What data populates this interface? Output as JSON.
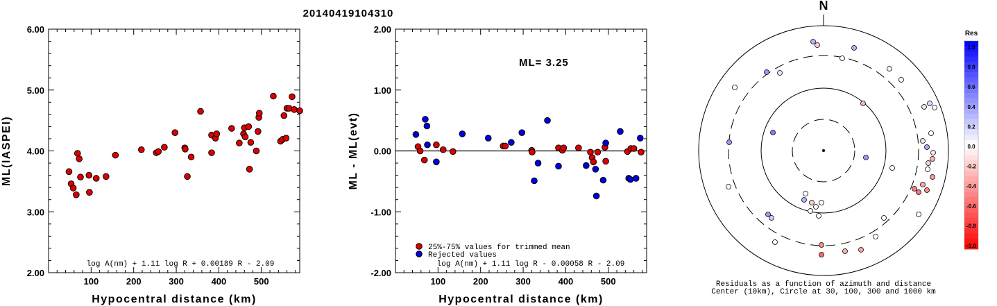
{
  "title": "20140419104310",
  "chart_data": [
    {
      "type": "scatter",
      "xlabel": "Hypocentral distance (km)",
      "ylabel": "ML(IASPEI)",
      "xlim": [
        0,
        590
      ],
      "ylim": [
        2.0,
        6.0
      ],
      "x_ticks": [
        "100",
        "200",
        "300",
        "400",
        "500"
      ],
      "y_ticks": [
        "2.00",
        "3.00",
        "4.00",
        "5.00",
        "6.00"
      ],
      "formula": "log A(nm) + 1.11 log R + 0.00189 R - 2.09",
      "series": [
        {
          "color": "#dd0000",
          "points": [
            [
              48,
              3.66
            ],
            [
              53,
              3.46
            ],
            [
              58,
              3.39
            ],
            [
              65,
              3.28
            ],
            [
              68,
              3.96
            ],
            [
              72,
              3.87
            ],
            [
              75,
              3.57
            ],
            [
              95,
              3.6
            ],
            [
              96,
              3.32
            ],
            [
              112,
              3.55
            ],
            [
              135,
              3.58
            ],
            [
              157,
              3.93
            ],
            [
              218,
              4.02
            ],
            [
              253,
              3.97
            ],
            [
              258,
              3.99
            ],
            [
              272,
              4.06
            ],
            [
              297,
              4.3
            ],
            [
              320,
              4.05
            ],
            [
              321,
              4.03
            ],
            [
              326,
              3.58
            ],
            [
              335,
              3.9
            ],
            [
              357,
              4.65
            ],
            [
              383,
              3.97
            ],
            [
              383,
              4.26
            ],
            [
              392,
              4.21
            ],
            [
              395,
              4.28
            ],
            [
              430,
              4.37
            ],
            [
              448,
              4.13
            ],
            [
              458,
              4.28
            ],
            [
              460,
              4.38
            ],
            [
              462,
              4.23
            ],
            [
              470,
              4.4
            ],
            [
              472,
              3.7
            ],
            [
              475,
              4.14
            ],
            [
              488,
              4.0
            ],
            [
              492,
              4.32
            ],
            [
              494,
              4.55
            ],
            [
              495,
              4.62
            ],
            [
              528,
              4.9
            ],
            [
              545,
              4.16
            ],
            [
              550,
              4.19
            ],
            [
              553,
              4.58
            ],
            [
              558,
              4.21
            ],
            [
              560,
              4.7
            ],
            [
              565,
              4.7
            ],
            [
              572,
              4.89
            ],
            [
              577,
              4.68
            ],
            [
              590,
              4.66
            ]
          ]
        }
      ]
    },
    {
      "type": "scatter",
      "xlabel": "Hypocentral distance (km)",
      "ylabel": "ML - ML(evt)",
      "xlim": [
        0,
        590
      ],
      "ylim": [
        -2.0,
        2.0
      ],
      "x_ticks": [
        "100",
        "200",
        "300",
        "400",
        "500"
      ],
      "y_ticks": [
        "-2.00",
        "-1.00",
        "0.00",
        "1.00",
        "2.00"
      ],
      "annotation": "ML= 3.25",
      "formula": "log A(nm) + 1.11 log R - 0.00058 R - 2.09",
      "series": [
        {
          "name": "25%-75% values for trimmed mean",
          "color": "#dd0000",
          "points": [
            [
              53,
              0.07
            ],
            [
              58,
              0.0
            ],
            [
              68,
              -0.15
            ],
            [
              96,
              0.1
            ],
            [
              112,
              0.02
            ],
            [
              135,
              -0.01
            ],
            [
              253,
              0.08
            ],
            [
              258,
              0.08
            ],
            [
              320,
              0.01
            ],
            [
              321,
              -0.02
            ],
            [
              383,
              0.05
            ],
            [
              392,
              0.01
            ],
            [
              395,
              0.05
            ],
            [
              430,
              0.05
            ],
            [
              458,
              -0.02
            ],
            [
              462,
              -0.11
            ],
            [
              465,
              -0.18
            ],
            [
              475,
              -0.02
            ],
            [
              492,
              0.06
            ],
            [
              494,
              -0.17
            ],
            [
              545,
              -0.01
            ],
            [
              553,
              0.04
            ],
            [
              560,
              0.04
            ],
            [
              577,
              -0.02
            ]
          ]
        },
        {
          "name": "Rejected values",
          "color": "#0000dd",
          "points": [
            [
              48,
              0.27
            ],
            [
              70,
              0.52
            ],
            [
              74,
              0.41
            ],
            [
              75,
              0.1
            ],
            [
              96,
              -0.18
            ],
            [
              157,
              0.28
            ],
            [
              218,
              0.21
            ],
            [
              272,
              0.14
            ],
            [
              297,
              0.3
            ],
            [
              326,
              -0.49
            ],
            [
              335,
              -0.2
            ],
            [
              357,
              0.5
            ],
            [
              383,
              -0.25
            ],
            [
              448,
              -0.24
            ],
            [
              470,
              -0.3
            ],
            [
              472,
              -0.74
            ],
            [
              488,
              -0.48
            ],
            [
              494,
              0.13
            ],
            [
              528,
              0.32
            ],
            [
              548,
              -0.45
            ],
            [
              552,
              -0.47
            ],
            [
              565,
              -0.45
            ],
            [
              575,
              0.21
            ]
          ]
        }
      ]
    },
    {
      "type": "scatter",
      "subtype": "polar",
      "north_label": "N",
      "caption_line1": "Residuals as a function of azimuth and distance",
      "caption_line2": "Center (10km), Circle at 30, 100, 300 and 1000 km",
      "rings_km": [
        30,
        100,
        300,
        1000
      ],
      "ring_styles": [
        "dashed",
        "solid",
        "dashed",
        "solid"
      ],
      "colorbar_title": "Res",
      "colorbar_ticks": [
        "1.0",
        "0.8",
        "0.6",
        "0.4",
        "0.2",
        "0.0",
        "-0.2",
        "-0.4",
        "-0.6",
        "-0.8",
        "-1.0"
      ],
      "points": [
        {
          "dx": -15,
          "dy": -157,
          "res": 0.3
        },
        {
          "dx": -9,
          "dy": -152,
          "res": -0.2
        },
        {
          "dx": 44,
          "dy": -148,
          "res": 0.3
        },
        {
          "dx": 27,
          "dy": -133,
          "res": 0.0
        },
        {
          "dx": -82,
          "dy": -113,
          "res": 0.4
        },
        {
          "dx": -63,
          "dy": -112,
          "res": 0.1
        },
        {
          "dx": 95,
          "dy": -118,
          "res": 0.05
        },
        {
          "dx": 112,
          "dy": -102,
          "res": 0.0
        },
        {
          "dx": -128,
          "dy": -91,
          "res": 0.0
        },
        {
          "dx": 57,
          "dy": -68,
          "res": -0.3
        },
        {
          "dx": 145,
          "dy": -63,
          "res": 0.1
        },
        {
          "dx": 153,
          "dy": -68,
          "res": 0.15
        },
        {
          "dx": 160,
          "dy": -62,
          "res": 0.0
        },
        {
          "dx": 155,
          "dy": -25,
          "res": 0.0
        },
        {
          "dx": -73,
          "dy": -26,
          "res": 0.5
        },
        {
          "dx": -136,
          "dy": -12,
          "res": 0.4
        },
        {
          "dx": 143,
          "dy": -14,
          "res": 0.1
        },
        {
          "dx": 149,
          "dy": -5,
          "res": 0.35
        },
        {
          "dx": 158,
          "dy": 3,
          "res": -0.1
        },
        {
          "dx": 157,
          "dy": 12,
          "res": -0.3
        },
        {
          "dx": 151,
          "dy": 18,
          "res": -0.2
        },
        {
          "dx": 61,
          "dy": 10,
          "res": 0.4
        },
        {
          "dx": 99,
          "dy": 25,
          "res": 0.0
        },
        {
          "dx": 150,
          "dy": 27,
          "res": 0.0
        },
        {
          "dx": 157,
          "dy": 38,
          "res": -0.4
        },
        {
          "dx": 143,
          "dy": 49,
          "res": -0.35
        },
        {
          "dx": 131,
          "dy": 55,
          "res": -0.5
        },
        {
          "dx": 149,
          "dy": 57,
          "res": -0.45
        },
        {
          "dx": 137,
          "dy": 60,
          "res": -0.55
        },
        {
          "dx": -137,
          "dy": 52,
          "res": 0.0
        },
        {
          "dx": -26,
          "dy": 62,
          "res": 0.0
        },
        {
          "dx": -28,
          "dy": 71,
          "res": 0.3
        },
        {
          "dx": -17,
          "dy": 75,
          "res": -0.2
        },
        {
          "dx": -3,
          "dy": 75,
          "res": 0.0
        },
        {
          "dx": -11,
          "dy": 81,
          "res": 0.0
        },
        {
          "dx": -19,
          "dy": 87,
          "res": 0.0
        },
        {
          "dx": -7,
          "dy": 94,
          "res": 0.0
        },
        {
          "dx": 87,
          "dy": 97,
          "res": 0.0
        },
        {
          "dx": 137,
          "dy": 92,
          "res": 0.0
        },
        {
          "dx": -80,
          "dy": 92,
          "res": 0.4
        },
        {
          "dx": -75,
          "dy": 97,
          "res": 0.2
        },
        {
          "dx": -70,
          "dy": 132,
          "res": 0.0
        },
        {
          "dx": 75,
          "dy": 124,
          "res": 0.0
        },
        {
          "dx": -3,
          "dy": 136,
          "res": -0.45
        },
        {
          "dx": -3,
          "dy": 150,
          "res": -0.6
        },
        {
          "dx": 31,
          "dy": 145,
          "res": -0.3
        },
        {
          "dx": 54,
          "dy": 143,
          "res": -0.35
        }
      ]
    }
  ]
}
